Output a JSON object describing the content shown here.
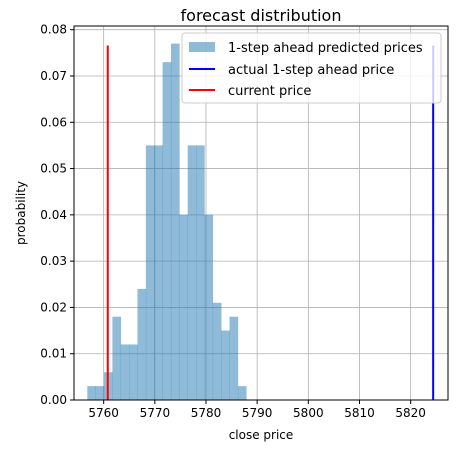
{
  "chart_data": {
    "type": "bar",
    "title": "forecast distribution",
    "xlabel": "close price",
    "ylabel": "probability",
    "xlim": [
      5754.2,
      5827.3
    ],
    "ylim": [
      0,
      0.0808
    ],
    "x_ticks": [
      5760,
      5770,
      5780,
      5790,
      5800,
      5810,
      5820
    ],
    "y_ticks": [
      0,
      0.01,
      0.02,
      0.03,
      0.04,
      0.05,
      0.06,
      0.07,
      0.08
    ],
    "x_tick_labels": [
      "5760",
      "5770",
      "5780",
      "5790",
      "5800",
      "5810",
      "5820"
    ],
    "y_tick_labels": [
      "0.00",
      "0.01",
      "0.02",
      "0.03",
      "0.04",
      "0.05",
      "0.06",
      "0.07",
      "0.08"
    ],
    "grid": true,
    "legend_position": "top-right",
    "histogram": {
      "name": "1-step ahead predicted prices",
      "color": "#1f77b4",
      "alpha": 0.5,
      "bin_start": 5756.8,
      "bin_width": 1.635,
      "values": [
        0.003,
        0.003,
        0.006,
        0.018,
        0.012,
        0.012,
        0.024,
        0.055,
        0.055,
        0.073,
        0.077,
        0.04,
        0.055,
        0.055,
        0.04,
        0.021,
        0.015,
        0.018,
        0.003
      ]
    },
    "lines": [
      {
        "name": "actual 1-step ahead price",
        "x": 5824.4,
        "y_top": 0.0766,
        "color": "#0000ff"
      },
      {
        "name": "current price",
        "x": 5760.8,
        "y_top": 0.0766,
        "color": "#ff0000"
      }
    ]
  }
}
